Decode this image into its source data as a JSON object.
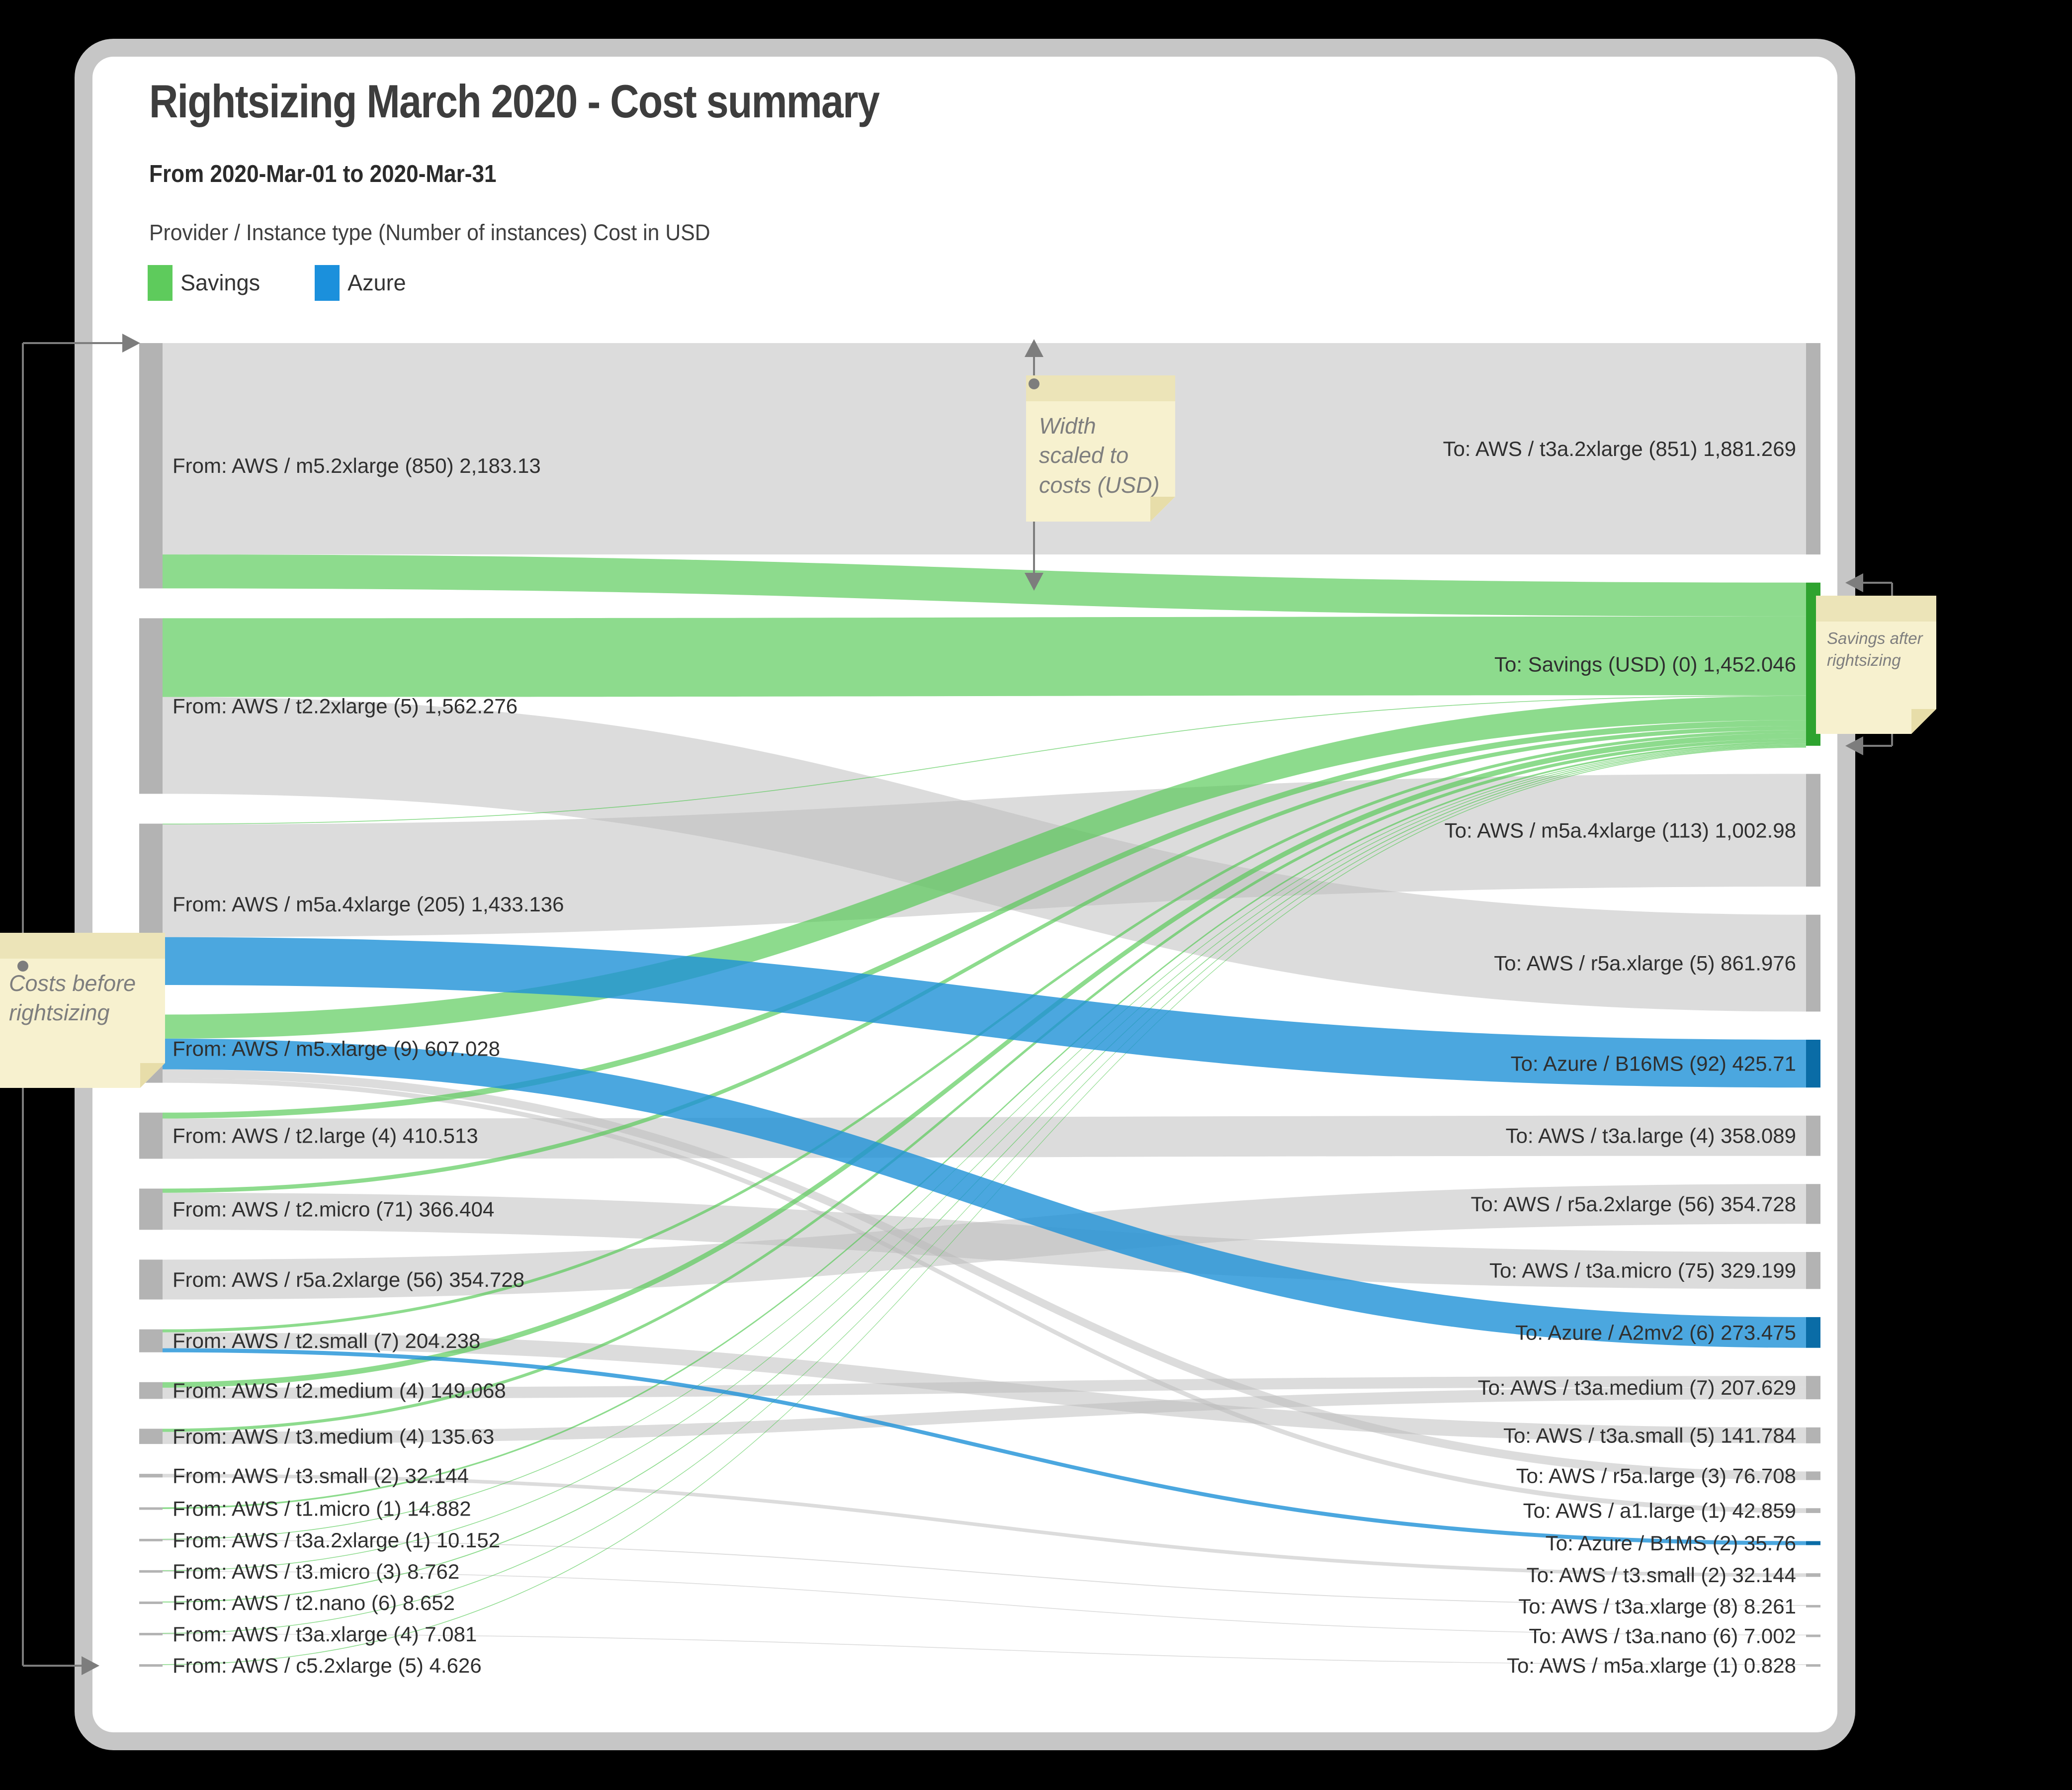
{
  "header": {
    "title": "Rightsizing March 2020 - Cost summary",
    "subtitle": "From 2020-Mar-01 to 2020-Mar-31",
    "unit_note": "Provider / Instance type (Number of instances) Cost in USD",
    "legend": [
      {
        "label": "Savings",
        "color": "#5ecb5c"
      },
      {
        "label": "Azure",
        "color": "#1b90dc"
      }
    ]
  },
  "annotations": {
    "costs_note": "Costs before rightsizing",
    "width_note": "Width scaled to costs (USD)",
    "savings_note": "Savings after rightsizing"
  },
  "chart_data": {
    "type": "sankey",
    "title": "Rightsizing March 2020 - Cost summary",
    "unit": "USD",
    "colors": {
      "flow": {
        "move": "rgba(186,186,186,0.5)",
        "savings": "rgba(80,200,80,0.65)",
        "azure": "rgba(30,145,215,0.8)"
      },
      "node": {
        "gray": "#b3b3b3",
        "green": "#2ea32f",
        "blue": "#0a6ca6"
      }
    },
    "sources": [
      {
        "provider": "AWS",
        "type": "m5.2xlarge",
        "count": 850,
        "cost": 2183.13,
        "label": "From: AWS / m5.2xlarge (850) 2,183.13"
      },
      {
        "provider": "AWS",
        "type": "t2.2xlarge",
        "count": 5,
        "cost": 1562.276,
        "label": "From: AWS / t2.2xlarge (5) 1,562.276"
      },
      {
        "provider": "AWS",
        "type": "m5a.4xlarge",
        "count": 205,
        "cost": 1433.136,
        "label": "From: AWS / m5a.4xlarge (205) 1,433.136"
      },
      {
        "provider": "AWS",
        "type": "m5.xlarge",
        "count": 9,
        "cost": 607.028,
        "label": "From: AWS / m5.xlarge (9) 607.028"
      },
      {
        "provider": "AWS",
        "type": "t2.large",
        "count": 4,
        "cost": 410.513,
        "label": "From: AWS / t2.large (4) 410.513"
      },
      {
        "provider": "AWS",
        "type": "t2.micro",
        "count": 71,
        "cost": 366.404,
        "label": "From: AWS / t2.micro (71) 366.404"
      },
      {
        "provider": "AWS",
        "type": "r5a.2xlarge",
        "count": 56,
        "cost": 354.728,
        "label": "From: AWS / r5a.2xlarge (56) 354.728"
      },
      {
        "provider": "AWS",
        "type": "t2.small",
        "count": 7,
        "cost": 204.238,
        "label": "From: AWS / t2.small (7) 204.238"
      },
      {
        "provider": "AWS",
        "type": "t2.medium",
        "count": 4,
        "cost": 149.068,
        "label": "From: AWS / t2.medium (4) 149.068"
      },
      {
        "provider": "AWS",
        "type": "t3.medium",
        "count": 4,
        "cost": 135.63,
        "label": "From: AWS / t3.medium (4) 135.63"
      },
      {
        "provider": "AWS",
        "type": "t3.small",
        "count": 2,
        "cost": 32.144,
        "label": "From: AWS / t3.small (2) 32.144"
      },
      {
        "provider": "AWS",
        "type": "t1.micro",
        "count": 1,
        "cost": 14.882,
        "label": "From: AWS / t1.micro (1) 14.882"
      },
      {
        "provider": "AWS",
        "type": "t3a.2xlarge",
        "count": 1,
        "cost": 10.152,
        "label": "From: AWS / t3a.2xlarge (1) 10.152"
      },
      {
        "provider": "AWS",
        "type": "t3.micro",
        "count": 3,
        "cost": 8.762,
        "label": "From: AWS / t3.micro (3) 8.762"
      },
      {
        "provider": "AWS",
        "type": "t2.nano",
        "count": 6,
        "cost": 8.652,
        "label": "From: AWS / t2.nano (6) 8.652"
      },
      {
        "provider": "AWS",
        "type": "t3a.xlarge",
        "count": 4,
        "cost": 7.081,
        "label": "From: AWS / t3a.xlarge (4) 7.081"
      },
      {
        "provider": "AWS",
        "type": "c5.2xlarge",
        "count": 5,
        "cost": 4.626,
        "label": "From: AWS / c5.2xlarge (5) 4.626"
      }
    ],
    "targets": [
      {
        "provider": "AWS",
        "type": "t3a.2xlarge",
        "count": 851,
        "cost": 1881.269,
        "color": "gray",
        "label": "To: AWS / t3a.2xlarge (851) 1,881.269"
      },
      {
        "provider": "",
        "type": "Savings (USD)",
        "count": 0,
        "cost": 1452.046,
        "color": "green",
        "label": "To: Savings (USD) (0) 1,452.046"
      },
      {
        "provider": "AWS",
        "type": "m5a.4xlarge",
        "count": 113,
        "cost": 1002.98,
        "color": "gray",
        "label": "To: AWS / m5a.4xlarge (113) 1,002.98"
      },
      {
        "provider": "AWS",
        "type": "r5a.xlarge",
        "count": 5,
        "cost": 861.976,
        "color": "gray",
        "label": "To: AWS / r5a.xlarge (5) 861.976"
      },
      {
        "provider": "Azure",
        "type": "B16MS",
        "count": 92,
        "cost": 425.71,
        "color": "blue",
        "label": "To: Azure / B16MS (92) 425.71"
      },
      {
        "provider": "AWS",
        "type": "t3a.large",
        "count": 4,
        "cost": 358.089,
        "color": "gray",
        "label": "To: AWS / t3a.large (4) 358.089"
      },
      {
        "provider": "AWS",
        "type": "r5a.2xlarge",
        "count": 56,
        "cost": 354.728,
        "color": "gray",
        "label": "To: AWS / r5a.2xlarge (56) 354.728"
      },
      {
        "provider": "AWS",
        "type": "t3a.micro",
        "count": 75,
        "cost": 329.199,
        "color": "gray",
        "label": "To: AWS / t3a.micro (75) 329.199"
      },
      {
        "provider": "Azure",
        "type": "A2mv2",
        "count": 6,
        "cost": 273.475,
        "color": "blue",
        "label": "To: Azure / A2mv2 (6) 273.475"
      },
      {
        "provider": "AWS",
        "type": "t3a.medium",
        "count": 7,
        "cost": 207.629,
        "color": "gray",
        "label": "To: AWS / t3a.medium (7) 207.629"
      },
      {
        "provider": "AWS",
        "type": "t3a.small",
        "count": 5,
        "cost": 141.784,
        "color": "gray",
        "label": "To: AWS / t3a.small (5) 141.784"
      },
      {
        "provider": "AWS",
        "type": "r5a.large",
        "count": 3,
        "cost": 76.708,
        "color": "gray",
        "label": "To: AWS / r5a.large (3) 76.708"
      },
      {
        "provider": "AWS",
        "type": "a1.large",
        "count": 1,
        "cost": 42.859,
        "color": "gray",
        "label": "To: AWS / a1.large (1) 42.859"
      },
      {
        "provider": "Azure",
        "type": "B1MS",
        "count": 2,
        "cost": 35.76,
        "color": "blue",
        "label": "To: Azure / B1MS (2) 35.76"
      },
      {
        "provider": "AWS",
        "type": "t3.small",
        "count": 2,
        "cost": 32.144,
        "color": "gray",
        "label": "To: AWS / t3.small (2) 32.144"
      },
      {
        "provider": "AWS",
        "type": "t3a.xlarge",
        "count": 8,
        "cost": 8.261,
        "color": "gray",
        "label": "To: AWS / t3a.xlarge (8) 8.261"
      },
      {
        "provider": "AWS",
        "type": "t3a.nano",
        "count": 6,
        "cost": 7.002,
        "color": "gray",
        "label": "To: AWS / t3a.nano (6) 7.002"
      },
      {
        "provider": "AWS",
        "type": "m5a.xlarge",
        "count": 1,
        "cost": 0.828,
        "color": "gray",
        "label": "To: AWS / m5a.xlarge (1) 0.828"
      }
    ],
    "links": [
      {
        "source": 0,
        "target": 0,
        "value": 1881.269,
        "kind": "move"
      },
      {
        "source": 0,
        "target": 1,
        "value": 301.861,
        "kind": "savings"
      },
      {
        "source": 1,
        "target": 1,
        "value": 700.3,
        "kind": "savings"
      },
      {
        "source": 1,
        "target": 3,
        "value": 861.976,
        "kind": "move"
      },
      {
        "source": 2,
        "target": 2,
        "value": 1002.98,
        "kind": "move"
      },
      {
        "source": 2,
        "target": 4,
        "value": 425.71,
        "kind": "azure"
      },
      {
        "source": 2,
        "target": 1,
        "value": 4.446,
        "kind": "savings"
      },
      {
        "source": 3,
        "target": 1,
        "value": 213.986,
        "kind": "savings"
      },
      {
        "source": 3,
        "target": 8,
        "value": 273.475,
        "kind": "azure"
      },
      {
        "source": 3,
        "target": 11,
        "value": 76.708,
        "kind": "move"
      },
      {
        "source": 3,
        "target": 12,
        "value": 42.859,
        "kind": "move"
      },
      {
        "source": 4,
        "target": 5,
        "value": 358.089,
        "kind": "move"
      },
      {
        "source": 4,
        "target": 1,
        "value": 52.424,
        "kind": "savings"
      },
      {
        "source": 5,
        "target": 7,
        "value": 329.199,
        "kind": "move"
      },
      {
        "source": 5,
        "target": 1,
        "value": 37.205,
        "kind": "savings"
      },
      {
        "source": 6,
        "target": 6,
        "value": 354.728,
        "kind": "move"
      },
      {
        "source": 7,
        "target": 10,
        "value": 141.784,
        "kind": "move"
      },
      {
        "source": 7,
        "target": 13,
        "value": 35.76,
        "kind": "azure"
      },
      {
        "source": 7,
        "target": 1,
        "value": 26.694,
        "kind": "savings"
      },
      {
        "source": 8,
        "target": 9,
        "value": 100.0,
        "kind": "move"
      },
      {
        "source": 8,
        "target": 1,
        "value": 49.068,
        "kind": "savings"
      },
      {
        "source": 9,
        "target": 9,
        "value": 107.629,
        "kind": "move"
      },
      {
        "source": 9,
        "target": 1,
        "value": 28.001,
        "kind": "savings"
      },
      {
        "source": 10,
        "target": 14,
        "value": 32.144,
        "kind": "move"
      },
      {
        "source": 11,
        "target": 1,
        "value": 14.882,
        "kind": "savings"
      },
      {
        "source": 12,
        "target": 15,
        "value": 8.261,
        "kind": "move"
      },
      {
        "source": 12,
        "target": 1,
        "value": 1.891,
        "kind": "savings"
      },
      {
        "source": 13,
        "target": 16,
        "value": 7.002,
        "kind": "move"
      },
      {
        "source": 13,
        "target": 1,
        "value": 1.76,
        "kind": "savings"
      },
      {
        "source": 14,
        "target": 1,
        "value": 8.652,
        "kind": "savings"
      },
      {
        "source": 15,
        "target": 17,
        "value": 0.828,
        "kind": "move"
      },
      {
        "source": 15,
        "target": 1,
        "value": 6.253,
        "kind": "savings"
      },
      {
        "source": 16,
        "target": 1,
        "value": 4.626,
        "kind": "savings"
      }
    ]
  }
}
